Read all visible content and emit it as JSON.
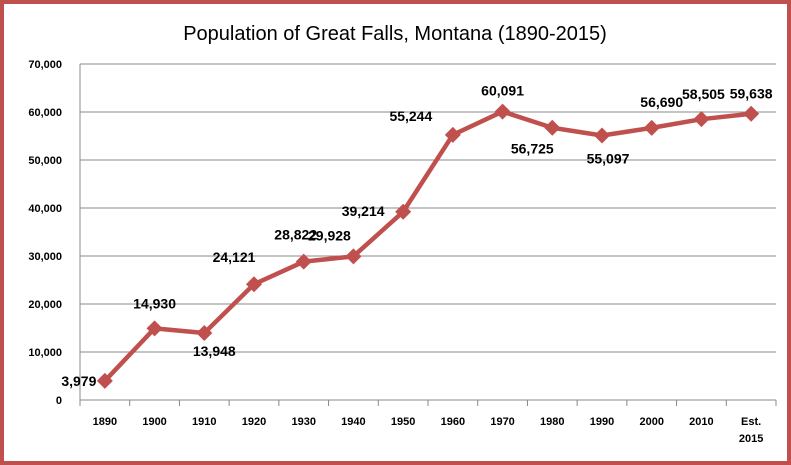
{
  "chart_data": {
    "type": "line",
    "title": "Population of Great Falls, Montana (1890-2015)",
    "xlabel": "",
    "ylabel": "",
    "ylim": [
      0,
      70000
    ],
    "yticks": [
      0,
      10000,
      20000,
      30000,
      40000,
      50000,
      60000,
      70000
    ],
    "ytick_labels": [
      "0",
      "10,000",
      "20,000",
      "30,000",
      "40,000",
      "50,000",
      "60,000",
      "70,000"
    ],
    "grid": true,
    "categories": [
      [
        "1890"
      ],
      [
        "1900"
      ],
      [
        "1910"
      ],
      [
        "1920"
      ],
      [
        "1930"
      ],
      [
        "1940"
      ],
      [
        "1950"
      ],
      [
        "1960"
      ],
      [
        "1970"
      ],
      [
        "1980"
      ],
      [
        "1990"
      ],
      [
        "2000"
      ],
      [
        "2010"
      ],
      [
        "Est.",
        "2015"
      ]
    ],
    "series": [
      {
        "name": "Population",
        "color": "#c0504d",
        "marker": "diamond",
        "values": [
          3979,
          14930,
          13948,
          24121,
          28822,
          29928,
          39214,
          55244,
          60091,
          56725,
          55097,
          56690,
          58505,
          59638
        ],
        "labels": [
          "3,979",
          "14,930",
          "13,948",
          "24,121",
          "28,822",
          "29,928",
          "39,214",
          "55,244",
          "60,091",
          "56,725",
          "55,097",
          "56,690",
          "58,505",
          "59,638"
        ]
      }
    ]
  },
  "colors": {
    "frame": "#c0504d",
    "line": "#c0504d",
    "grid": "#888888"
  }
}
